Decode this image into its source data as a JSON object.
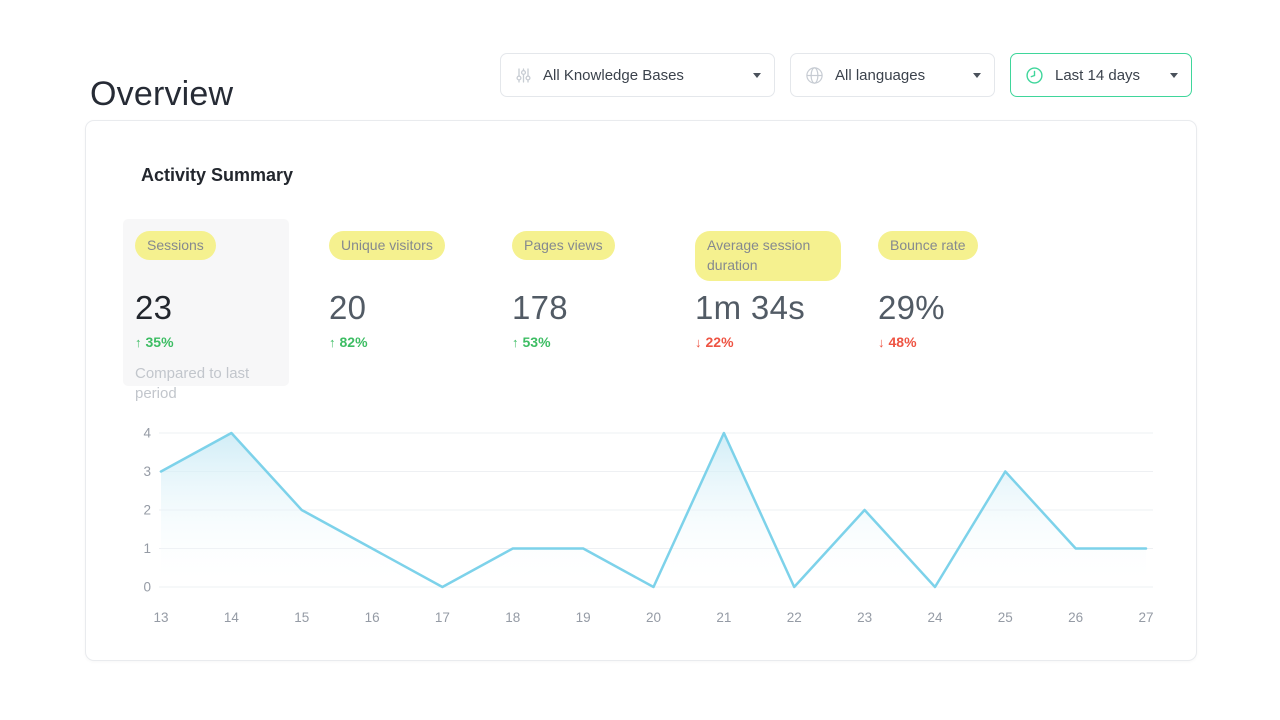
{
  "page": {
    "title": "Overview"
  },
  "filters": {
    "knowledge_bases": {
      "label": "All Knowledge Bases",
      "icon": "sliders-icon"
    },
    "languages": {
      "label": "All languages",
      "icon": "globe-icon"
    },
    "date_range": {
      "label": "Last 14 days",
      "icon": "clock-icon"
    }
  },
  "summary": {
    "title": "Activity Summary",
    "metrics": [
      {
        "label": "Sessions",
        "value": "23",
        "change": "35%",
        "direction": "up",
        "selected": true,
        "note": "Compared to last period"
      },
      {
        "label": "Unique visitors",
        "value": "20",
        "change": "82%",
        "direction": "up"
      },
      {
        "label": "Pages views",
        "value": "178",
        "change": "53%",
        "direction": "up"
      },
      {
        "label": "Average session duration",
        "value": "1m 34s",
        "change": "22%",
        "direction": "down"
      },
      {
        "label": "Bounce rate",
        "value": "29%",
        "change": "48%",
        "direction": "down"
      }
    ]
  },
  "colors": {
    "accent_green": "#3fd69b",
    "up_green": "#3dbd63",
    "down_red": "#ee5443",
    "highlight_yellow": "#f5f18f",
    "selected_card_bg": "#f7f7f8"
  },
  "chart_data": {
    "type": "area",
    "x": [
      13,
      14,
      15,
      16,
      17,
      18,
      19,
      20,
      21,
      22,
      23,
      24,
      25,
      26,
      27
    ],
    "values": [
      3,
      4,
      2,
      1,
      0,
      1,
      1,
      0,
      4,
      0,
      2,
      0,
      3,
      1,
      1
    ],
    "title": "",
    "xlabel": "",
    "ylabel": "",
    "ylim": [
      0,
      4
    ],
    "yticks": [
      0,
      1,
      2,
      3,
      4
    ],
    "grid": true,
    "legend": false,
    "line_color": "#7dd2ea",
    "fill_top_color": "#c9eaf5",
    "grid_color": "#eef0f3",
    "tick_color": "#959ba5"
  }
}
